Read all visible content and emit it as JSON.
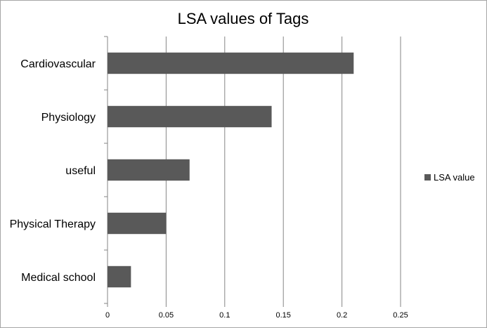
{
  "chart_data": {
    "type": "bar",
    "orientation": "horizontal",
    "title": "LSA values of Tags",
    "categories": [
      "Cardiovascular",
      "Physiology",
      "useful",
      "Physical Therapy",
      "Medical school"
    ],
    "series": [
      {
        "name": "LSA value",
        "values": [
          0.21,
          0.14,
          0.07,
          0.05,
          0.02
        ],
        "color": "#595959"
      }
    ],
    "xlim": [
      0,
      0.25
    ],
    "xticks": [
      "0",
      "0.05",
      "0.1",
      "0.15",
      "0.2",
      "0.25"
    ],
    "grid": true,
    "legend": "right"
  }
}
